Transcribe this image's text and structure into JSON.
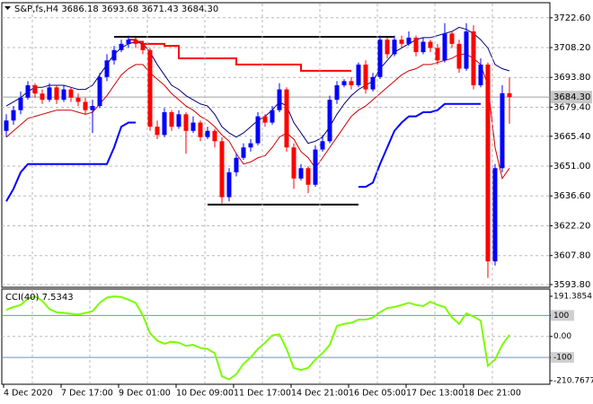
{
  "chart_data": [
    {
      "type": "candlestick",
      "title": "S&P,fs,H4  3686.18 3693.68 3671.43 3684.30",
      "categories": [
        "4 Dec 2020",
        null,
        null,
        null,
        null,
        null,
        null,
        null,
        "7 Dec 17:00",
        null,
        null,
        null,
        null,
        null,
        null,
        null,
        "9 Dec 01:00",
        null,
        null,
        null,
        null,
        null,
        null,
        null,
        "10 Dec 09:00",
        null,
        null,
        null,
        null,
        null,
        null,
        null,
        "11 Dec 17:00",
        null,
        null,
        null,
        null,
        null,
        null,
        null,
        "14 Dec 21:00",
        null,
        null,
        null,
        null,
        null,
        null,
        null,
        "16 Dec 05:00",
        null,
        null,
        null,
        null,
        null,
        null,
        null,
        "17 Dec 13:00",
        null,
        null,
        null,
        null,
        null,
        null,
        null,
        "18 Dec 21:00",
        null,
        null,
        null,
        null,
        null,
        null
      ],
      "open": [
        3668,
        3673,
        3678,
        3684,
        3690,
        3686,
        3683,
        3689,
        3683,
        3688,
        3684,
        3682,
        3678,
        3680,
        3694,
        3702,
        3707,
        3710,
        3712,
        3710,
        3707,
        3670,
        3666,
        3677,
        3670,
        3676,
        3668,
        3672,
        3665,
        3668,
        3663,
        3636,
        3648,
        3655,
        3660,
        3662,
        3675,
        3672,
        3678,
        3688,
        3660,
        3645,
        3650,
        3642,
        3659,
        3663,
        3683,
        3690,
        3692,
        3690,
        3700,
        3688,
        3694,
        3712,
        3705,
        3712,
        3710,
        3713,
        3706,
        3711,
        3708,
        3702,
        3715,
        3710,
        3698,
        3716,
        3690,
        3700,
        3605,
        3650,
        3686.18
      ],
      "high": [
        3676,
        3680,
        3687,
        3692,
        3691,
        3688,
        3691,
        3690,
        3690,
        3689,
        3686,
        3684,
        3683,
        3696,
        3705,
        3709,
        3712,
        3714,
        3713,
        3711,
        3708,
        3673,
        3679,
        3678,
        3678,
        3677,
        3675,
        3673,
        3670,
        3669,
        3665,
        3650,
        3657,
        3662,
        3664,
        3677,
        3676,
        3680,
        3691,
        3689,
        3662,
        3652,
        3651,
        3661,
        3666,
        3685,
        3692,
        3693,
        3694,
        3701,
        3702,
        3696,
        3714,
        3713,
        3714,
        3714,
        3716,
        3714,
        3713,
        3712,
        3710,
        3720,
        3716,
        3712,
        3720,
        3719,
        3703,
        3701,
        3652,
        3690,
        3693.68
      ],
      "low": [
        3665,
        3671,
        3676,
        3683,
        3684,
        3681,
        3682,
        3681,
        3682,
        3682,
        3680,
        3676,
        3667,
        3679,
        3692,
        3700,
        3706,
        3708,
        3708,
        3705,
        3668,
        3664,
        3665,
        3668,
        3669,
        3657,
        3667,
        3663,
        3664,
        3660,
        3633,
        3634,
        3646,
        3654,
        3658,
        3661,
        3670,
        3671,
        3677,
        3658,
        3640,
        3644,
        3638,
        3641,
        3658,
        3662,
        3681,
        3689,
        3688,
        3689,
        3686,
        3687,
        3693,
        3703,
        3704,
        3708,
        3709,
        3704,
        3705,
        3706,
        3700,
        3701,
        3708,
        3696,
        3697,
        3688,
        3689,
        3597,
        3603,
        3648,
        3671.43
      ],
      "close": [
        3673,
        3678,
        3684,
        3690,
        3686,
        3683,
        3689,
        3683,
        3688,
        3684,
        3682,
        3678,
        3680,
        3694,
        3702,
        3707,
        3710,
        3712,
        3710,
        3707,
        3670,
        3666,
        3677,
        3670,
        3676,
        3668,
        3672,
        3665,
        3668,
        3663,
        3636,
        3648,
        3655,
        3660,
        3662,
        3675,
        3672,
        3678,
        3688,
        3660,
        3645,
        3650,
        3642,
        3659,
        3663,
        3683,
        3690,
        3692,
        3690,
        3700,
        3688,
        3694,
        3712,
        3705,
        3712,
        3710,
        3713,
        3706,
        3711,
        3708,
        3702,
        3715,
        3710,
        3698,
        3716,
        3690,
        3700,
        3605,
        3650,
        3686.18,
        3684.3
      ],
      "up_color": "#0000ff",
      "down_color": "#ff0000",
      "series": [
        {
          "color": "#00007a",
          "width": 1,
          "step": false,
          "values": [
            3680,
            3682,
            3684,
            3687,
            3689,
            3689,
            3690,
            3690,
            3690,
            3689,
            3688,
            3688,
            3690,
            3695,
            3700,
            3705,
            3708,
            3710,
            3711,
            3710,
            3706,
            3700,
            3695,
            3690,
            3688,
            3685,
            3683,
            3681,
            3680,
            3676,
            3670,
            3667,
            3665,
            3667,
            3670,
            3673,
            3675,
            3678,
            3682,
            3680,
            3672,
            3667,
            3662,
            3663,
            3665,
            3670,
            3676,
            3681,
            3685,
            3688,
            3690,
            3692,
            3698,
            3702,
            3706,
            3708,
            3710,
            3712,
            3713,
            3713,
            3714,
            3715,
            3716,
            3718,
            3717,
            3715,
            3712,
            3708,
            3700,
            3698,
            3697
          ]
        },
        {
          "color": "#d00000",
          "width": 1,
          "step": false,
          "values": [
            3665,
            3668,
            3671,
            3674,
            3675,
            3676,
            3677,
            3678,
            3678,
            3678,
            3677,
            3676,
            3677,
            3681,
            3685,
            3690,
            3695,
            3698,
            3700,
            3700,
            3696,
            3693,
            3690,
            3686,
            3683,
            3680,
            3678,
            3675,
            3673,
            3670,
            3666,
            3663,
            3657,
            3652,
            3653,
            3655,
            3656,
            3660,
            3665,
            3667,
            3664,
            3658,
            3655,
            3650,
            3655,
            3660,
            3665,
            3670,
            3675,
            3678,
            3680,
            3683,
            3686,
            3689,
            3692,
            3695,
            3697,
            3698,
            3700,
            3700,
            3701,
            3702,
            3703,
            3705,
            3705,
            3703,
            3700,
            3690,
            3660,
            3645,
            3650
          ]
        },
        {
          "color": "#0000ff",
          "width": 2,
          "step": false,
          "values": [
            3634,
            3640,
            3648,
            3652,
            3652,
            3652,
            3652,
            3652,
            3652,
            3652,
            3652,
            3652,
            3652,
            3652,
            3652,
            3660,
            3670,
            3672,
            3672,
            null,
            null,
            null,
            null,
            null,
            null,
            null,
            null,
            null,
            null,
            null,
            null,
            null,
            null,
            null,
            null,
            null,
            null,
            null,
            null,
            null,
            null,
            null,
            null,
            null,
            null,
            null,
            null,
            null,
            null,
            3641,
            3641,
            3643,
            3652,
            3660,
            3668,
            3672,
            3675,
            3675,
            3677,
            3677,
            3678,
            3681,
            3681,
            3681,
            3681,
            3681,
            3681,
            null,
            null,
            null,
            null
          ]
        },
        {
          "color": "#ff0000",
          "width": 2,
          "step": true,
          "values": [
            null,
            null,
            null,
            null,
            null,
            null,
            null,
            null,
            null,
            null,
            null,
            null,
            null,
            null,
            null,
            null,
            null,
            3712,
            3711,
            3710,
            3710,
            3710,
            3709,
            3709,
            3703,
            3703,
            3703,
            3703,
            3703,
            3703,
            3703,
            3703,
            3700,
            3700,
            3700,
            3700,
            3700,
            3700,
            3700,
            3700,
            3700,
            3697,
            3697,
            3697,
            3697,
            3697,
            3697,
            3697,
            null,
            null,
            null,
            null,
            null,
            null,
            null,
            null,
            null,
            null,
            null,
            null,
            null,
            null,
            null,
            null,
            null,
            null,
            null,
            null,
            null,
            null,
            null
          ]
        }
      ],
      "levels": [
        {
          "value": 3713.4,
          "from": 15,
          "to": 54,
          "color": "#000000"
        },
        {
          "value": 3632.4,
          "from": 28,
          "to": 49,
          "color": "#000000"
        }
      ],
      "last_price": {
        "value": 3684.3,
        "label": "3684.30"
      },
      "ylim": [
        3592.5,
        3729
      ],
      "yticks": [
        {
          "value": 3722.6,
          "label": "3722.60"
        },
        {
          "value": 3708.2,
          "label": "3708.20"
        },
        {
          "value": 3693.8,
          "label": "3693.80"
        },
        {
          "value": 3679.4,
          "label": "3679.40"
        },
        {
          "value": 3665.4,
          "label": "3665.40"
        },
        {
          "value": 3651,
          "label": "3651.00"
        },
        {
          "value": 3636.6,
          "label": "3636.60"
        },
        {
          "value": 3622.2,
          "label": "3622.20"
        },
        {
          "value": 3607.8,
          "label": "3607.80"
        },
        {
          "value": 3593.8,
          "label": "3593.80"
        }
      ],
      "grid": true
    },
    {
      "type": "line",
      "title": "CCI(40) 7.5343",
      "values": [
        127,
        140,
        150,
        180,
        190,
        170,
        130,
        115,
        112,
        108,
        105,
        112,
        120,
        160,
        185,
        191,
        188,
        175,
        160,
        100,
        15,
        -20,
        -35,
        -25,
        -30,
        -45,
        -40,
        -55,
        -60,
        -80,
        -190,
        -205,
        -180,
        -130,
        -100,
        -60,
        -30,
        5,
        10,
        -60,
        -150,
        -160,
        -150,
        -110,
        -80,
        -40,
        50,
        60,
        65,
        80,
        80,
        90,
        115,
        135,
        140,
        150,
        160,
        150,
        145,
        165,
        150,
        140,
        90,
        60,
        110,
        95,
        75,
        -140,
        -110,
        -40,
        7.5343
      ],
      "color": "#7cfc00",
      "ylim": [
        -210.7677,
        191.3854
      ],
      "yticks": [
        191.3854,
        100,
        {
          "value": 0,
          "label": "0.00"
        },
        -100,
        -210.7677
      ],
      "levels": [
        100,
        -100
      ],
      "level_color": "#6f92b8",
      "grid": true
    }
  ]
}
